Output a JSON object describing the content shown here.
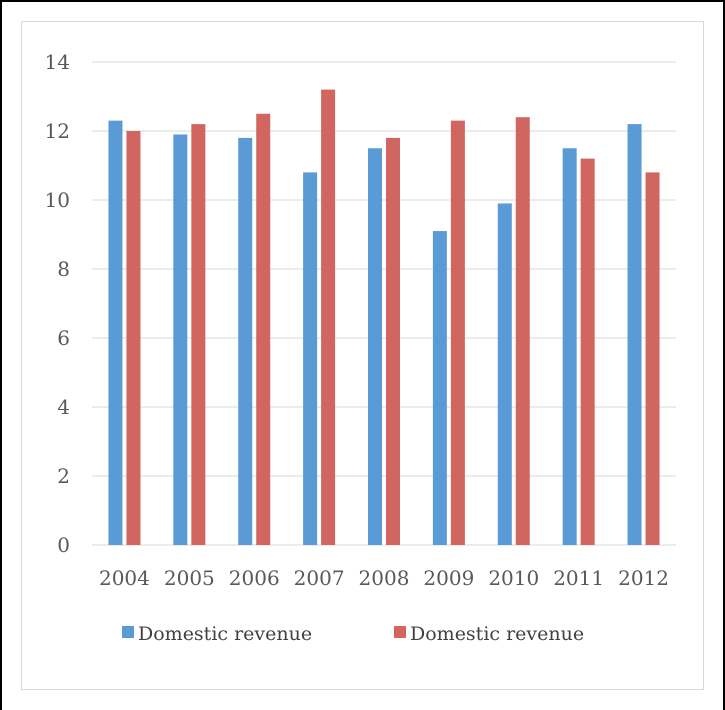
{
  "chart_data": {
    "type": "bar",
    "title": "",
    "xlabel": "",
    "ylabel": "",
    "categories": [
      "2004",
      "2005",
      "2006",
      "2007",
      "2008",
      "2009",
      "2010",
      "2011",
      "2012"
    ],
    "series": [
      {
        "name": "Domestic revenue",
        "color": "#5b9bd5",
        "values": [
          12.3,
          11.9,
          11.8,
          10.8,
          11.5,
          9.1,
          9.9,
          11.5,
          12.2
        ]
      },
      {
        "name": "Domestic revenue",
        "color": "#d0665f",
        "values": [
          12.0,
          12.2,
          12.5,
          13.2,
          11.8,
          12.3,
          12.4,
          11.2,
          10.8
        ]
      }
    ],
    "ylim": [
      0,
      14
    ],
    "yticks": [
      0,
      2,
      4,
      6,
      8,
      10,
      12,
      14
    ],
    "grid": true,
    "legend_position": "bottom"
  }
}
